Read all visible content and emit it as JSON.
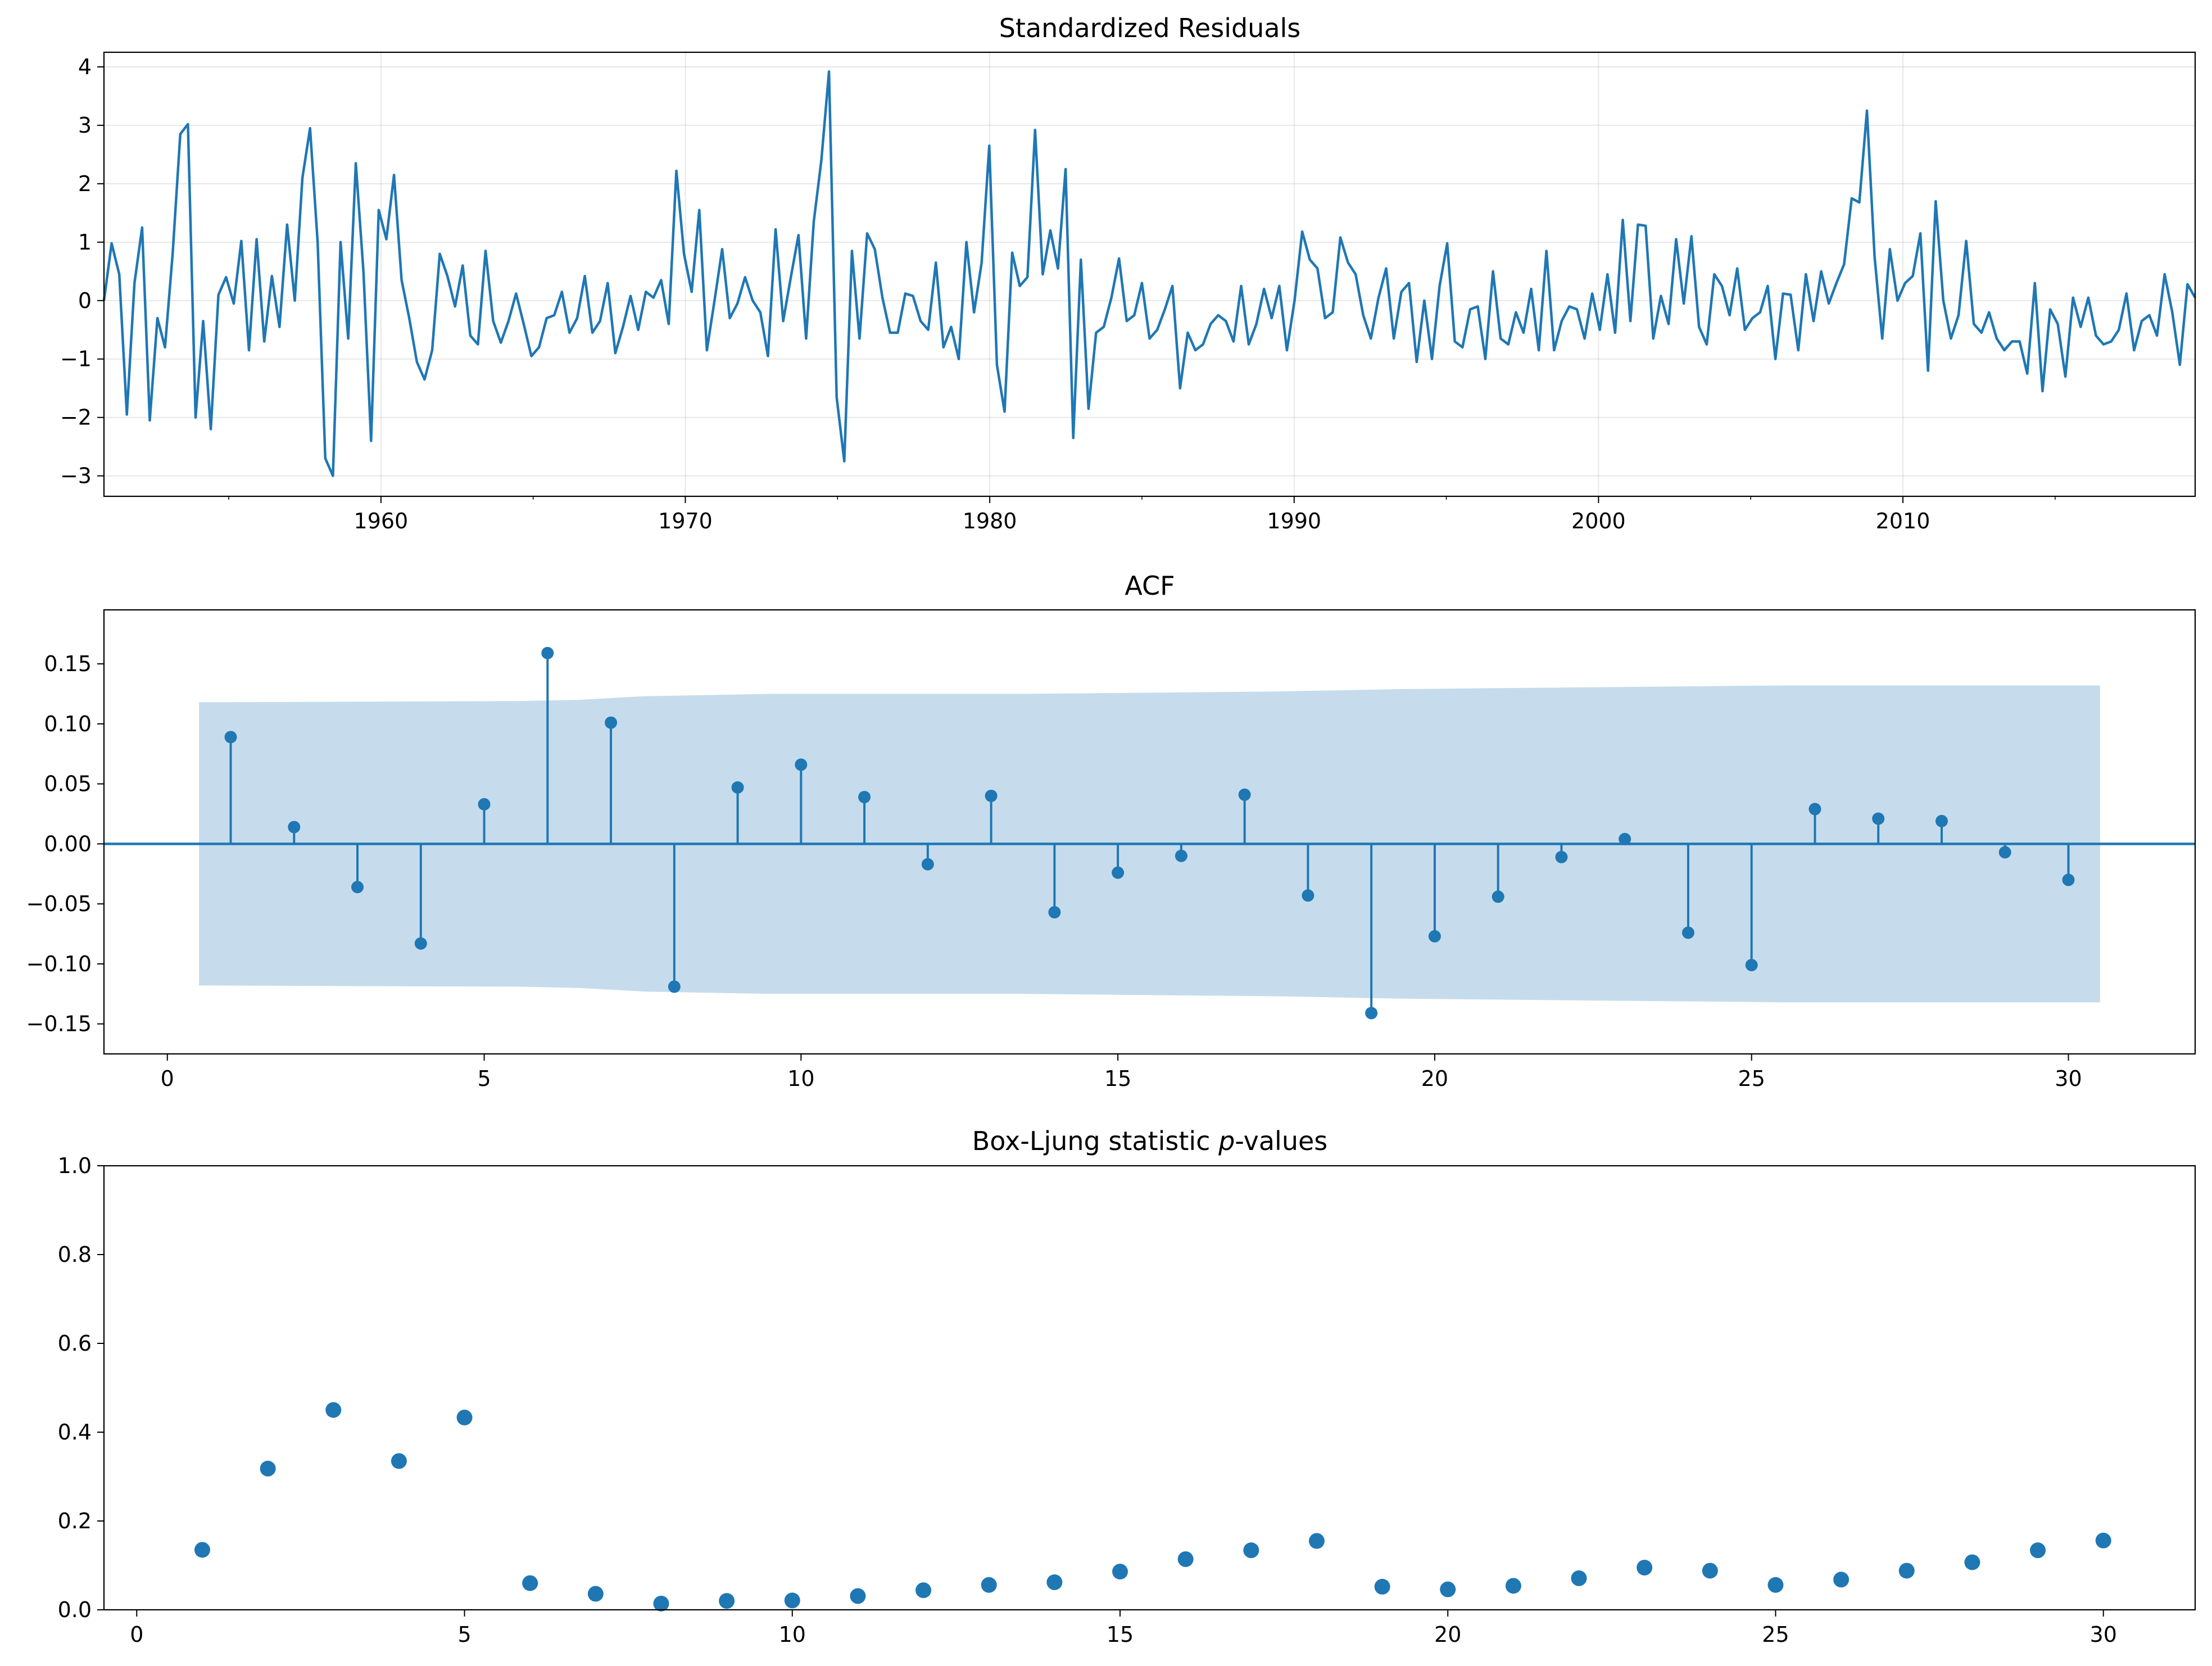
{
  "chart_data": [
    {
      "type": "line",
      "title": "Standardized Residuals",
      "xlabel": "",
      "ylabel": "",
      "xlim": [
        1950.9,
        2019.6
      ],
      "ylim": [
        -3.35,
        4.25
      ],
      "xticks": [
        1960,
        1970,
        1980,
        1990,
        2000,
        2010
      ],
      "yticks": [
        -3,
        -2,
        -1,
        0,
        1,
        2,
        3,
        4
      ],
      "grid": true,
      "color": "#1f77b4",
      "x_start": 1950.9,
      "x_end": 2019.6,
      "values": [
        0.0,
        0.98,
        0.45,
        -1.95,
        0.3,
        1.25,
        -2.05,
        -0.3,
        -0.8,
        0.8,
        2.85,
        3.02,
        -2.0,
        -0.35,
        -2.2,
        0.1,
        0.4,
        -0.05,
        1.02,
        -0.85,
        1.05,
        -0.7,
        0.42,
        -0.45,
        1.3,
        0.0,
        2.1,
        2.95,
        1.0,
        -2.7,
        -3.0,
        1.0,
        -0.65,
        2.35,
        0.5,
        -2.4,
        1.55,
        1.05,
        2.15,
        0.35,
        -0.3,
        -1.05,
        -1.35,
        -0.85,
        0.8,
        0.42,
        -0.1,
        0.6,
        -0.6,
        -0.75,
        0.85,
        -0.35,
        -0.72,
        -0.35,
        0.12,
        -0.4,
        -0.95,
        -0.8,
        -0.3,
        -0.25,
        0.15,
        -0.55,
        -0.3,
        0.42,
        -0.55,
        -0.35,
        0.3,
        -0.9,
        -0.45,
        0.08,
        -0.5,
        0.15,
        0.05,
        0.35,
        -0.4,
        2.22,
        0.8,
        0.15,
        1.55,
        -0.85,
        0.0,
        0.88,
        -0.3,
        -0.05,
        0.4,
        0.0,
        -0.2,
        -0.95,
        1.22,
        -0.35,
        0.4,
        1.12,
        -0.65,
        1.35,
        2.4,
        3.92,
        -1.65,
        -2.75,
        0.85,
        -0.65,
        1.15,
        0.88,
        0.05,
        -0.55,
        -0.55,
        0.12,
        0.08,
        -0.35,
        -0.5,
        0.65,
        -0.8,
        -0.45,
        -1.0,
        1.0,
        -0.2,
        0.65,
        2.65,
        -1.1,
        -1.9,
        0.82,
        0.25,
        0.4,
        2.92,
        0.45,
        1.2,
        0.55,
        2.25,
        -2.35,
        0.7,
        -1.85,
        -0.55,
        -0.45,
        0.05,
        0.72,
        -0.35,
        -0.25,
        0.3,
        -0.65,
        -0.5,
        -0.15,
        0.25,
        -1.5,
        -0.55,
        -0.85,
        -0.75,
        -0.4,
        -0.25,
        -0.35,
        -0.7,
        0.25,
        -0.75,
        -0.4,
        0.2,
        -0.3,
        0.25,
        -0.85,
        0.0,
        1.18,
        0.7,
        0.55,
        -0.3,
        -0.2,
        1.08,
        0.65,
        0.45,
        -0.25,
        -0.65,
        0.05,
        0.55,
        -0.65,
        0.15,
        0.3,
        -1.05,
        0.0,
        -1.0,
        0.25,
        0.98,
        -0.7,
        -0.8,
        -0.15,
        -0.1,
        -1.0,
        0.5,
        -0.65,
        -0.75,
        -0.2,
        -0.55,
        0.2,
        -0.85,
        0.85,
        -0.85,
        -0.35,
        -0.1,
        -0.15,
        -0.65,
        0.12,
        -0.5,
        0.45,
        -0.55,
        1.38,
        -0.35,
        1.3,
        1.28,
        -0.65,
        0.08,
        -0.4,
        1.05,
        -0.05,
        1.1,
        -0.45,
        -0.75,
        0.45,
        0.25,
        -0.25,
        0.55,
        -0.5,
        -0.3,
        -0.2,
        0.25,
        -1.0,
        0.12,
        0.1,
        -0.85,
        0.45,
        -0.35,
        0.5,
        -0.05,
        0.3,
        0.62,
        1.75,
        1.68,
        3.25,
        0.75,
        -0.65,
        0.88,
        0.0,
        0.3,
        0.42,
        1.15,
        -1.2,
        1.7,
        0.0,
        -0.65,
        -0.25,
        1.02,
        -0.4,
        -0.55,
        -0.2,
        -0.65,
        -0.85,
        -0.7,
        -0.7,
        -1.25,
        0.3,
        -1.55,
        -0.15,
        -0.4,
        -1.3,
        0.05,
        -0.45,
        0.05,
        -0.6,
        -0.75,
        -0.7,
        -0.5,
        0.12,
        -0.85,
        -0.35,
        -0.25,
        -0.6,
        0.45,
        -0.2,
        -1.1,
        0.28,
        0.05
      ]
    },
    {
      "type": "bar",
      "title": "ACF",
      "xlabel": "",
      "ylabel": "",
      "xlim": [
        -1,
        32
      ],
      "ylim": [
        -0.175,
        0.195
      ],
      "xticks": [
        0,
        5,
        10,
        15,
        20,
        25,
        30
      ],
      "yticks": [
        -0.15,
        -0.1,
        -0.05,
        0.0,
        0.05,
        0.1,
        0.15
      ],
      "ytick_labels": [
        "−0.15",
        "−0.10",
        "−0.05",
        "0.00",
        "0.05",
        "0.10",
        "0.15"
      ],
      "grid": false,
      "color": "#1f77b4",
      "band_color": "#c6dcec",
      "lags": [
        1,
        2,
        3,
        4,
        5,
        6,
        7,
        8,
        9,
        10,
        11,
        12,
        13,
        14,
        15,
        16,
        17,
        18,
        19,
        20,
        21,
        22,
        23,
        24,
        25,
        26,
        27,
        28,
        29,
        30
      ],
      "values": [
        0.089,
        0.014,
        -0.036,
        -0.083,
        0.033,
        0.159,
        0.101,
        -0.119,
        0.047,
        0.066,
        0.039,
        -0.017,
        0.04,
        -0.057,
        -0.024,
        -0.01,
        0.041,
        -0.043,
        -0.141,
        -0.077,
        -0.044,
        -0.011,
        0.004,
        -0.074,
        -0.101,
        0.029,
        0.021,
        0.019,
        -0.007,
        -0.03
      ],
      "confidence_band": {
        "x": [
          0.5,
          5.5,
          6.5,
          7.5,
          9.5,
          13.5,
          17.5,
          19.5,
          25.5,
          30.5
        ],
        "upper": [
          0.118,
          0.119,
          0.12,
          0.123,
          0.125,
          0.125,
          0.127,
          0.129,
          0.132,
          0.132
        ]
      }
    },
    {
      "type": "scatter",
      "title": "Box-Ljung statistic p-values",
      "title_parts": [
        "Box-Ljung statistic ",
        "p",
        "-values"
      ],
      "xlabel": "",
      "ylabel": "",
      "xlim": [
        -0.5,
        31.4
      ],
      "ylim": [
        0,
        1
      ],
      "xticks": [
        0,
        5,
        10,
        15,
        20,
        25,
        30
      ],
      "yticks": [
        0.0,
        0.2,
        0.4,
        0.6,
        0.8,
        1.0
      ],
      "ytick_labels": [
        "0.0",
        "0.2",
        "0.4",
        "0.6",
        "0.8",
        "1.0"
      ],
      "grid": false,
      "color": "#1f77b4",
      "x": [
        1,
        2,
        3,
        4,
        5,
        6,
        7,
        8,
        9,
        10,
        11,
        12,
        13,
        14,
        15,
        16,
        17,
        18,
        19,
        20,
        21,
        22,
        23,
        24,
        25,
        26,
        27,
        28,
        29,
        30
      ],
      "values": [
        0.135,
        0.318,
        0.45,
        0.335,
        0.433,
        0.06,
        0.036,
        0.014,
        0.02,
        0.021,
        0.031,
        0.044,
        0.056,
        0.062,
        0.086,
        0.114,
        0.134,
        0.155,
        0.052,
        0.046,
        0.054,
        0.071,
        0.095,
        0.088,
        0.056,
        0.068,
        0.088,
        0.107,
        0.134,
        0.156
      ]
    }
  ]
}
